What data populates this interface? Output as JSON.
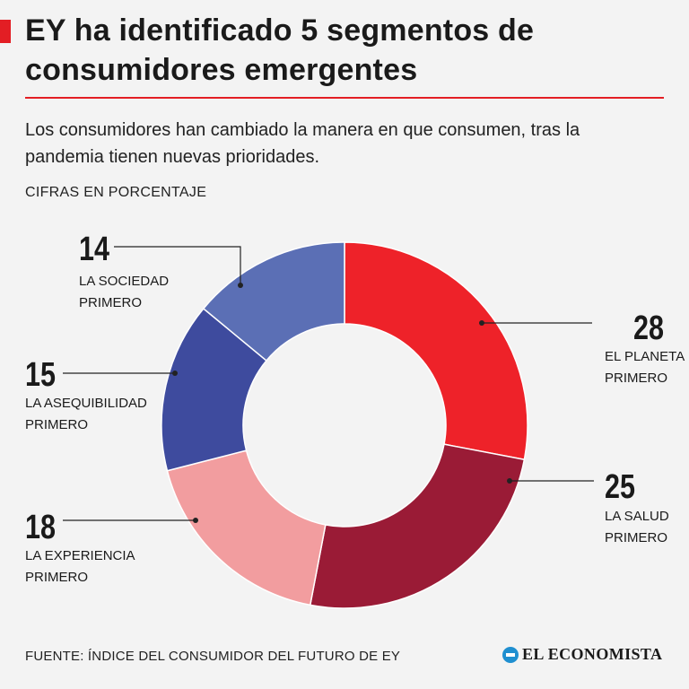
{
  "header": {
    "title": "EY ha identificado 5 segmentos de consumidores emergentes",
    "subtitle": "Los consumidores han cambiado la manera en que consumen, tras la pandemia tienen nuevas prioridades.",
    "units": "CIFRAS EN PORCENTAJE"
  },
  "footer": {
    "source": "FUENTE: ÍNDICE DEL CONSUMIDOR DEL FUTURO DE EY",
    "logo": "EL ECONOMISTA"
  },
  "colors": {
    "accent": "#e31e24",
    "background": "#f3f3f3"
  },
  "chart_data": {
    "type": "pie",
    "style": "donut",
    "title": "",
    "slices": [
      {
        "value": 28,
        "label_line1": "EL PLANETA",
        "label_line2": "PRIMERO",
        "color": "#ee2229"
      },
      {
        "value": 25,
        "label_line1": "LA SALUD",
        "label_line2": "PRIMERO",
        "color": "#9a1b36"
      },
      {
        "value": 18,
        "label_line1": "LA EXPERIENCIA",
        "label_line2": "PRIMERO",
        "color": "#f29d9f"
      },
      {
        "value": 15,
        "label_line1": "LA ASEQUIBILIDAD",
        "label_line2": "PRIMERO",
        "color": "#3e4b9e"
      },
      {
        "value": 14,
        "label_line1": "LA SOCIEDAD",
        "label_line2": "PRIMERO",
        "color": "#5b6fb5"
      }
    ]
  }
}
